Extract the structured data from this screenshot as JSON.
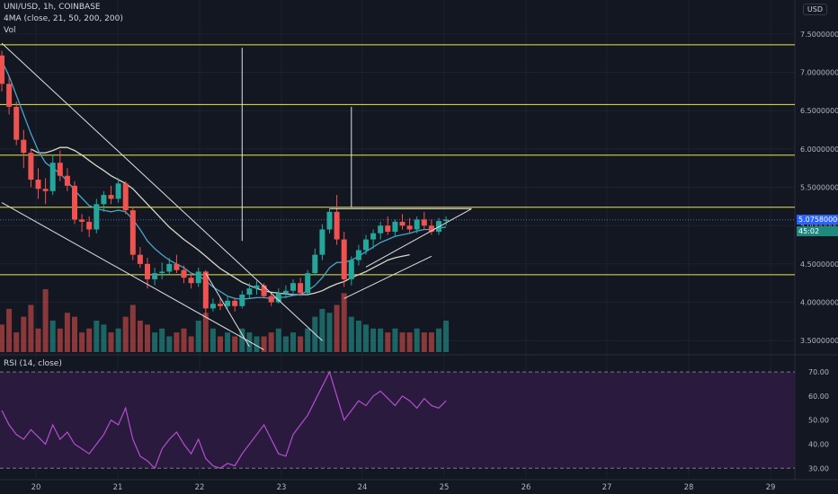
{
  "header": {
    "symbol_line": "UNI/USD, 1h, COINBASE",
    "ma_line": "4MA (close, 21, 50, 200, 200)",
    "vol_label": "Vol",
    "currency_button": "USD"
  },
  "rsi_panel": {
    "label": "RSI (14, close)"
  },
  "price_tags": {
    "last_price": "5.07580000",
    "countdown": "45:02"
  },
  "colors": {
    "background": "#131722",
    "up": "#26a69a",
    "down": "#ef5350",
    "horizontal_levels": "#e8e84a",
    "trendlines": "#e0e0e0",
    "ma_fast": "#4aa3c8",
    "ma_slow": "#d8d8c8",
    "rsi_line": "#b34fd0",
    "rsi_band": "#2a1a3e",
    "last_price_tag": "#2962ff",
    "countdown_tag": "#1e8a7f"
  },
  "chart_data": [
    {
      "type": "candlestick",
      "title": "UNI/USD, 1h, COINBASE",
      "x_tick_labels": [
        "20",
        "21",
        "22",
        "23",
        "24",
        "25",
        "26",
        "27",
        "28",
        "29"
      ],
      "y_ticks": [
        3.5,
        4.0,
        4.5,
        5.0,
        5.5,
        6.0,
        6.5,
        7.0,
        7.5
      ],
      "y_tick_labels": [
        "3.50000000",
        "4.00000000",
        "4.50000000",
        "5.00000000",
        "5.50000000",
        "6.00000000",
        "6.50000000",
        "7.00000000",
        "7.50000000"
      ],
      "ylim": [
        3.35,
        7.85
      ],
      "last_price": 5.0758,
      "ohlc": [
        [
          7.22,
          7.28,
          6.75,
          6.85
        ],
        [
          6.85,
          6.95,
          6.45,
          6.55
        ],
        [
          6.55,
          6.62,
          6.05,
          6.12
        ],
        [
          6.12,
          6.25,
          5.75,
          5.95
        ],
        [
          5.95,
          6.0,
          5.5,
          5.6
        ],
        [
          5.6,
          5.75,
          5.35,
          5.48
        ],
        [
          5.48,
          5.62,
          5.28,
          5.45
        ],
        [
          5.45,
          5.92,
          5.4,
          5.82
        ],
        [
          5.82,
          5.98,
          5.58,
          5.65
        ],
        [
          5.65,
          5.75,
          5.45,
          5.52
        ],
        [
          5.52,
          5.58,
          5.02,
          5.08
        ],
        [
          5.08,
          5.15,
          4.92,
          5.05
        ],
        [
          5.05,
          5.12,
          4.85,
          4.95
        ],
        [
          4.95,
          5.35,
          4.9,
          5.28
        ],
        [
          5.28,
          5.45,
          5.18,
          5.4
        ],
        [
          5.4,
          5.52,
          5.28,
          5.35
        ],
        [
          5.35,
          5.62,
          5.3,
          5.55
        ],
        [
          5.55,
          5.58,
          5.15,
          5.2
        ],
        [
          5.2,
          5.25,
          4.55,
          4.62
        ],
        [
          4.62,
          4.72,
          4.45,
          4.5
        ],
        [
          4.5,
          4.58,
          4.18,
          4.3
        ],
        [
          4.3,
          4.45,
          4.22,
          4.38
        ],
        [
          4.38,
          4.52,
          4.3,
          4.4
        ],
        [
          4.4,
          4.58,
          4.35,
          4.5
        ],
        [
          4.5,
          4.62,
          4.38,
          4.42
        ],
        [
          4.42,
          4.48,
          4.25,
          4.32
        ],
        [
          4.32,
          4.38,
          4.18,
          4.25
        ],
        [
          4.25,
          4.45,
          4.2,
          4.4
        ],
        [
          4.4,
          4.42,
          3.82,
          3.92
        ],
        [
          3.92,
          4.05,
          3.88,
          3.98
        ],
        [
          3.98,
          4.05,
          3.9,
          3.95
        ],
        [
          3.95,
          4.08,
          3.92,
          4.02
        ],
        [
          4.02,
          4.05,
          3.88,
          3.95
        ],
        [
          3.95,
          4.15,
          3.92,
          4.1
        ],
        [
          4.1,
          4.25,
          4.05,
          4.18
        ],
        [
          4.18,
          4.28,
          4.1,
          4.22
        ],
        [
          4.22,
          4.25,
          4.05,
          4.08
        ],
        [
          4.08,
          4.12,
          3.95,
          4.0
        ],
        [
          4.0,
          4.18,
          3.98,
          4.12
        ],
        [
          4.12,
          4.22,
          4.05,
          4.15
        ],
        [
          4.15,
          4.3,
          4.1,
          4.25
        ],
        [
          4.25,
          4.32,
          4.08,
          4.12
        ],
        [
          4.12,
          4.42,
          4.1,
          4.38
        ],
        [
          4.38,
          4.7,
          4.35,
          4.62
        ],
        [
          4.62,
          5.02,
          4.55,
          4.95
        ],
        [
          4.95,
          5.22,
          4.9,
          5.18
        ],
        [
          5.18,
          5.4,
          4.75,
          4.82
        ],
        [
          4.82,
          4.92,
          4.2,
          4.3
        ],
        [
          4.3,
          4.6,
          4.22,
          4.55
        ],
        [
          4.55,
          4.75,
          4.48,
          4.68
        ],
        [
          4.68,
          4.88,
          4.62,
          4.82
        ],
        [
          4.82,
          4.95,
          4.7,
          4.9
        ],
        [
          4.9,
          5.05,
          4.82,
          5.0
        ],
        [
          5.0,
          5.12,
          4.88,
          4.92
        ],
        [
          4.92,
          5.08,
          4.85,
          5.05
        ],
        [
          5.05,
          5.15,
          4.95,
          5.0
        ],
        [
          5.0,
          5.1,
          4.9,
          4.95
        ],
        [
          4.95,
          5.12,
          4.9,
          5.08
        ],
        [
          5.08,
          5.18,
          4.95,
          5.0
        ],
        [
          5.0,
          5.08,
          4.88,
          4.92
        ],
        [
          4.92,
          5.1,
          4.88,
          5.06
        ],
        [
          5.06,
          5.12,
          5.0,
          5.08
        ]
      ],
      "volume": [
        35,
        55,
        25,
        45,
        60,
        30,
        80,
        40,
        30,
        50,
        45,
        25,
        30,
        40,
        35,
        25,
        30,
        45,
        60,
        40,
        35,
        25,
        30,
        20,
        25,
        30,
        20,
        40,
        50,
        30,
        20,
        25,
        20,
        30,
        25,
        20,
        20,
        25,
        30,
        20,
        25,
        20,
        30,
        45,
        55,
        50,
        60,
        75,
        45,
        40,
        35,
        30,
        30,
        25,
        30,
        25,
        25,
        30,
        25,
        25,
        30,
        40
      ],
      "ma_21": [
        7.15,
        6.95,
        6.7,
        6.45,
        6.2,
        5.98,
        5.82,
        5.75,
        5.68,
        5.58,
        5.46,
        5.36,
        5.26,
        5.22,
        5.2,
        5.18,
        5.2,
        5.18,
        5.08,
        4.95,
        4.8,
        4.7,
        4.62,
        4.55,
        4.5,
        4.45,
        4.38,
        4.35,
        4.28,
        4.2,
        4.14,
        4.08,
        4.05,
        4.04,
        4.05,
        4.06,
        4.06,
        4.05,
        4.06,
        4.07,
        4.09,
        4.1,
        4.15,
        4.22,
        4.32,
        4.45,
        4.52,
        4.52,
        4.55,
        4.6,
        4.66,
        4.72,
        4.78,
        4.82,
        4.86,
        4.88,
        4.9,
        4.93,
        4.95,
        4.95,
        4.97,
        4.98
      ],
      "ma_50": [
        null,
        null,
        null,
        null,
        6.0,
        5.95,
        5.95,
        5.98,
        6.02,
        6.02,
        5.98,
        5.92,
        5.85,
        5.78,
        5.72,
        5.65,
        5.6,
        5.55,
        5.48,
        5.38,
        5.28,
        5.18,
        5.08,
        4.98,
        4.9,
        4.82,
        4.75,
        4.68,
        4.6,
        4.52,
        4.44,
        4.38,
        4.32,
        4.26,
        4.22,
        4.18,
        4.15,
        4.13,
        4.12,
        4.11,
        4.1,
        4.1,
        4.1,
        4.12,
        4.15,
        4.2,
        4.24,
        4.27,
        4.32,
        4.36,
        4.4,
        4.45,
        4.5,
        4.55,
        4.58,
        4.6,
        4.62,
        null,
        null,
        null,
        null,
        null
      ],
      "horizontal_levels": [
        7.36,
        6.58,
        5.92,
        5.24,
        4.36
      ],
      "trendlines": [
        {
          "from": [
            0,
            7.38
          ],
          "to": [
            44,
            3.5
          ]
        },
        {
          "from": [
            0,
            5.3
          ],
          "to": [
            36,
            3.38
          ]
        },
        {
          "from": [
            34,
            3.42
          ],
          "to": [
            28,
            4.38
          ]
        },
        {
          "from": [
            45,
            5.22
          ],
          "to": [
            64.5,
            5.22
          ]
        },
        {
          "from": [
            64.5,
            5.22
          ],
          "to": [
            50,
            4.46
          ]
        },
        {
          "from": [
            47,
            4.05
          ],
          "to": [
            59,
            4.6
          ]
        },
        {
          "from": [
            33,
            4.8
          ],
          "to": [
            33,
            7.32
          ]
        },
        {
          "from": [
            48,
            5.24
          ],
          "to": [
            48,
            6.55
          ]
        }
      ]
    },
    {
      "type": "line",
      "title": "RSI (14, close)",
      "y_ticks": [
        30,
        40,
        50,
        60,
        70
      ],
      "y_tick_labels": [
        "30.00",
        "40.00",
        "50.00",
        "60.00",
        "70.00"
      ],
      "ylim": [
        26,
        76
      ],
      "band": [
        30,
        70
      ],
      "values": [
        54,
        48,
        44,
        42,
        46,
        43,
        40,
        48,
        42,
        45,
        40,
        38,
        36,
        40,
        44,
        50,
        48,
        55,
        42,
        35,
        33,
        30,
        38,
        42,
        45,
        40,
        36,
        42,
        34,
        31,
        30,
        32,
        31,
        36,
        40,
        44,
        48,
        42,
        36,
        35,
        44,
        48,
        52,
        58,
        64,
        70,
        60,
        50,
        54,
        58,
        56,
        60,
        62,
        59,
        56,
        60,
        58,
        55,
        59,
        56,
        55,
        58
      ]
    }
  ]
}
